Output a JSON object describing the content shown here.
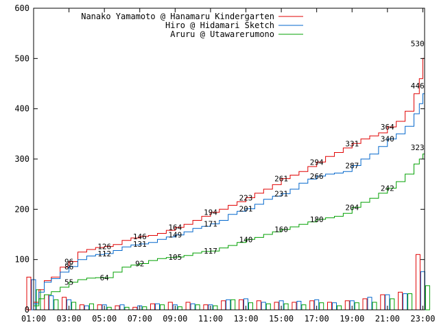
{
  "chart_data": {
    "type": "line",
    "title": "",
    "xlabel": "",
    "ylabel": "",
    "x_ticks": [
      "01:00",
      "03:00",
      "05:00",
      "07:00",
      "09:00",
      "11:00",
      "13:00",
      "15:00",
      "17:00",
      "19:00",
      "21:00",
      "23:00"
    ],
    "y_ticks": [
      "0",
      "100",
      "200",
      "300",
      "400",
      "500",
      "600"
    ],
    "xlim": [
      1,
      23.1
    ],
    "ylim": [
      0,
      600
    ],
    "grid": false,
    "legend_position": "top-right",
    "series": [
      {
        "name": "Nanako Yamamoto @ Hanamaru Kindergarten",
        "color": "#e00000",
        "x": [
          1.0,
          1.3,
          1.6,
          2.0,
          2.5,
          3.0,
          3.5,
          4.0,
          4.5,
          5.0,
          5.5,
          6.0,
          6.5,
          7.0,
          7.5,
          8.0,
          8.5,
          9.0,
          9.5,
          10.0,
          10.5,
          11.0,
          11.5,
          12.0,
          12.5,
          13.0,
          13.5,
          14.0,
          14.5,
          15.0,
          15.5,
          16.0,
          16.5,
          17.0,
          17.5,
          18.0,
          18.5,
          19.0,
          19.5,
          20.0,
          20.5,
          21.0,
          21.5,
          22.0,
          22.5,
          22.8,
          23.0,
          23.1
        ],
        "y": [
          15,
          40,
          58,
          65,
          85,
          96,
          115,
          120,
          124,
          126,
          130,
          138,
          143,
          146,
          148,
          152,
          158,
          164,
          170,
          178,
          186,
          194,
          200,
          208,
          215,
          223,
          232,
          240,
          249,
          261,
          268,
          275,
          285,
          294,
          305,
          313,
          322,
          331,
          340,
          346,
          352,
          364,
          375,
          395,
          430,
          460,
          500,
          530
        ]
      },
      {
        "name": "Hiro @ Hidamari Sketch",
        "color": "#0066cc",
        "x": [
          1.0,
          1.3,
          1.6,
          2.0,
          2.5,
          3.0,
          3.5,
          4.0,
          4.5,
          5.0,
          5.5,
          6.0,
          6.5,
          7.0,
          7.5,
          8.0,
          8.5,
          9.0,
          9.5,
          10.0,
          10.5,
          11.0,
          11.5,
          12.0,
          12.5,
          13.0,
          13.5,
          14.0,
          14.5,
          15.0,
          15.5,
          16.0,
          16.5,
          17.0,
          17.5,
          18.0,
          18.5,
          19.0,
          19.5,
          20.0,
          20.5,
          21.0,
          21.5,
          22.0,
          22.5,
          22.8,
          23.0,
          23.1
        ],
        "y": [
          12,
          35,
          55,
          62,
          75,
          86,
          100,
          107,
          110,
          112,
          118,
          125,
          129,
          131,
          134,
          140,
          145,
          149,
          155,
          162,
          166,
          171,
          178,
          190,
          196,
          201,
          210,
          220,
          226,
          231,
          240,
          252,
          260,
          266,
          270,
          272,
          275,
          287,
          300,
          310,
          325,
          340,
          350,
          365,
          390,
          410,
          430,
          446
        ]
      },
      {
        "name": "Aruru @ Utawarerumono",
        "color": "#00a000",
        "x": [
          1.0,
          1.3,
          1.6,
          2.0,
          2.5,
          3.0,
          3.5,
          4.0,
          4.5,
          5.0,
          5.5,
          6.0,
          6.5,
          7.0,
          7.5,
          8.0,
          8.5,
          9.0,
          9.5,
          10.0,
          10.5,
          11.0,
          11.5,
          12.0,
          12.5,
          13.0,
          13.5,
          14.0,
          14.5,
          15.0,
          15.5,
          16.0,
          16.5,
          17.0,
          17.5,
          18.0,
          18.5,
          19.0,
          19.5,
          20.0,
          20.5,
          21.0,
          21.5,
          22.0,
          22.5,
          22.8,
          23.0,
          23.1
        ],
        "y": [
          8,
          22,
          30,
          36,
          45,
          55,
          60,
          63,
          64,
          64,
          75,
          85,
          89,
          92,
          98,
          102,
          104,
          105,
          108,
          113,
          116,
          117,
          123,
          128,
          134,
          140,
          144,
          150,
          155,
          160,
          165,
          170,
          175,
          180,
          183,
          186,
          192,
          204,
          214,
          222,
          232,
          242,
          255,
          270,
          290,
          300,
          310,
          323
        ]
      }
    ],
    "data_labels": [
      {
        "series": 0,
        "x": 3.0,
        "y": 96,
        "text": "96"
      },
      {
        "series": 0,
        "x": 5.0,
        "y": 126,
        "text": "126"
      },
      {
        "series": 0,
        "x": 7.0,
        "y": 146,
        "text": "146"
      },
      {
        "series": 0,
        "x": 9.0,
        "y": 164,
        "text": "164"
      },
      {
        "series": 0,
        "x": 11.0,
        "y": 194,
        "text": "194"
      },
      {
        "series": 0,
        "x": 13.0,
        "y": 223,
        "text": "223"
      },
      {
        "series": 0,
        "x": 15.0,
        "y": 261,
        "text": "261"
      },
      {
        "series": 0,
        "x": 17.0,
        "y": 294,
        "text": "294"
      },
      {
        "series": 0,
        "x": 19.0,
        "y": 331,
        "text": "331"
      },
      {
        "series": 0,
        "x": 21.0,
        "y": 364,
        "text": "364"
      },
      {
        "series": 0,
        "x": 22.7,
        "y": 530,
        "text": "530"
      },
      {
        "series": 1,
        "x": 3.0,
        "y": 86,
        "text": "86"
      },
      {
        "series": 1,
        "x": 5.0,
        "y": 112,
        "text": "112"
      },
      {
        "series": 1,
        "x": 7.0,
        "y": 131,
        "text": "131"
      },
      {
        "series": 1,
        "x": 9.0,
        "y": 149,
        "text": "149"
      },
      {
        "series": 1,
        "x": 11.0,
        "y": 171,
        "text": "171"
      },
      {
        "series": 1,
        "x": 13.0,
        "y": 201,
        "text": "201"
      },
      {
        "series": 1,
        "x": 15.0,
        "y": 231,
        "text": "231"
      },
      {
        "series": 1,
        "x": 17.0,
        "y": 266,
        "text": "266"
      },
      {
        "series": 1,
        "x": 19.0,
        "y": 287,
        "text": "287"
      },
      {
        "series": 1,
        "x": 21.0,
        "y": 340,
        "text": "340"
      },
      {
        "series": 1,
        "x": 22.7,
        "y": 446,
        "text": "446"
      },
      {
        "series": 2,
        "x": 3.0,
        "y": 55,
        "text": "55"
      },
      {
        "series": 2,
        "x": 5.0,
        "y": 64,
        "text": "64"
      },
      {
        "series": 2,
        "x": 7.0,
        "y": 92,
        "text": "92"
      },
      {
        "series": 2,
        "x": 9.0,
        "y": 105,
        "text": "105"
      },
      {
        "series": 2,
        "x": 11.0,
        "y": 117,
        "text": "117"
      },
      {
        "series": 2,
        "x": 13.0,
        "y": 140,
        "text": "140"
      },
      {
        "series": 2,
        "x": 15.0,
        "y": 160,
        "text": "160"
      },
      {
        "series": 2,
        "x": 17.0,
        "y": 180,
        "text": "180"
      },
      {
        "series": 2,
        "x": 19.0,
        "y": 204,
        "text": "204"
      },
      {
        "series": 2,
        "x": 21.0,
        "y": 242,
        "text": "242"
      },
      {
        "series": 2,
        "x": 22.7,
        "y": 323,
        "text": "323"
      }
    ],
    "bars": {
      "hours": [
        1,
        2,
        3,
        4,
        5,
        6,
        7,
        8,
        9,
        10,
        11,
        12,
        13,
        14,
        15,
        16,
        17,
        18,
        19,
        20,
        21,
        22,
        23
      ],
      "series": [
        {
          "name": "Nanako Yamamoto @ Hanamaru Kindergarten",
          "color": "#e00000",
          "values": [
            65,
            30,
            25,
            10,
            10,
            8,
            5,
            12,
            15,
            15,
            10,
            18,
            20,
            18,
            15,
            15,
            18,
            15,
            18,
            22,
            30,
            35,
            110
          ]
        },
        {
          "name": "Hiro @ Hidamari Sketch",
          "color": "#0066cc",
          "values": [
            60,
            28,
            20,
            8,
            10,
            10,
            8,
            12,
            10,
            12,
            10,
            20,
            22,
            15,
            18,
            17,
            20,
            14,
            18,
            25,
            30,
            32,
            76
          ]
        },
        {
          "name": "Aruru @ Utawarerumono",
          "color": "#00a000",
          "values": [
            40,
            20,
            15,
            12,
            5,
            5,
            6,
            10,
            6,
            10,
            8,
            20,
            14,
            12,
            12,
            10,
            14,
            8,
            14,
            15,
            22,
            32,
            48
          ]
        }
      ]
    }
  }
}
